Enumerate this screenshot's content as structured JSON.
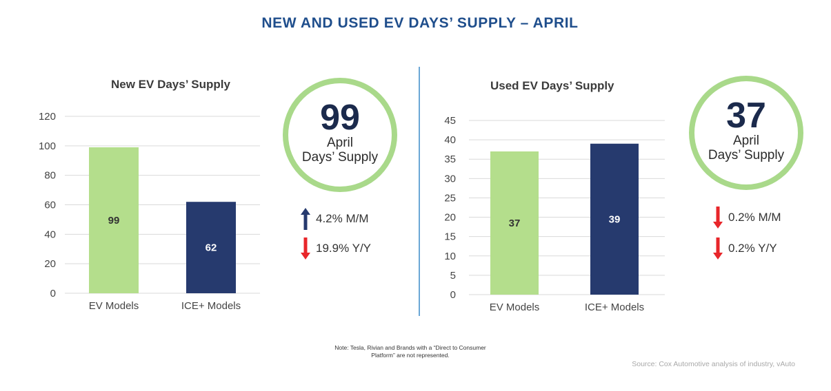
{
  "title": "NEW AND USED EV DAYS’ SUPPLY – APRIL",
  "colors": {
    "ev": "#b4de8c",
    "ice": "#263a6e",
    "grid": "#d9d9d9",
    "circle": "#a9d98a",
    "up_arrow": "#263a6e",
    "down_arrow": "#e8262a"
  },
  "chart_data": [
    {
      "type": "bar",
      "title": "New EV Days’ Supply",
      "categories": [
        "EV Models",
        "ICE+ Models"
      ],
      "values": [
        99,
        62
      ],
      "data_labels": [
        "99",
        "62"
      ],
      "ylim": [
        0,
        120
      ],
      "yticks": [
        0,
        20,
        40,
        60,
        80,
        100,
        120
      ],
      "grid": true,
      "bar_colors": [
        "#b4de8c",
        "#263a6e"
      ]
    },
    {
      "type": "bar",
      "title": "Used EV Days’ Supply",
      "categories": [
        "EV Models",
        "ICE+ Models"
      ],
      "values": [
        37,
        39
      ],
      "data_labels": [
        "37",
        "39"
      ],
      "ylim": [
        0,
        45
      ],
      "yticks": [
        0,
        5,
        10,
        15,
        20,
        25,
        30,
        35,
        40,
        45
      ],
      "grid": true,
      "bar_colors": [
        "#b4de8c",
        "#263a6e"
      ]
    }
  ],
  "new_summary": {
    "value": "99",
    "line1": "April",
    "line2": "Days’ Supply",
    "stats": [
      {
        "direction": "up",
        "text": "4.2% M/M"
      },
      {
        "direction": "down",
        "text": "19.9% Y/Y"
      }
    ]
  },
  "used_summary": {
    "value": "37",
    "line1": "April",
    "line2": "Days’ Supply",
    "stats": [
      {
        "direction": "down",
        "text": "0.2% M/M"
      },
      {
        "direction": "down",
        "text": "0.2% Y/Y"
      }
    ]
  },
  "note_line1": "Note: Tesla, Rivian and Brands with a “Direct to Consumer",
  "note_line2": "Platform” are not represented.",
  "source": "Source: Cox Automotive analysis of industry, vAuto"
}
